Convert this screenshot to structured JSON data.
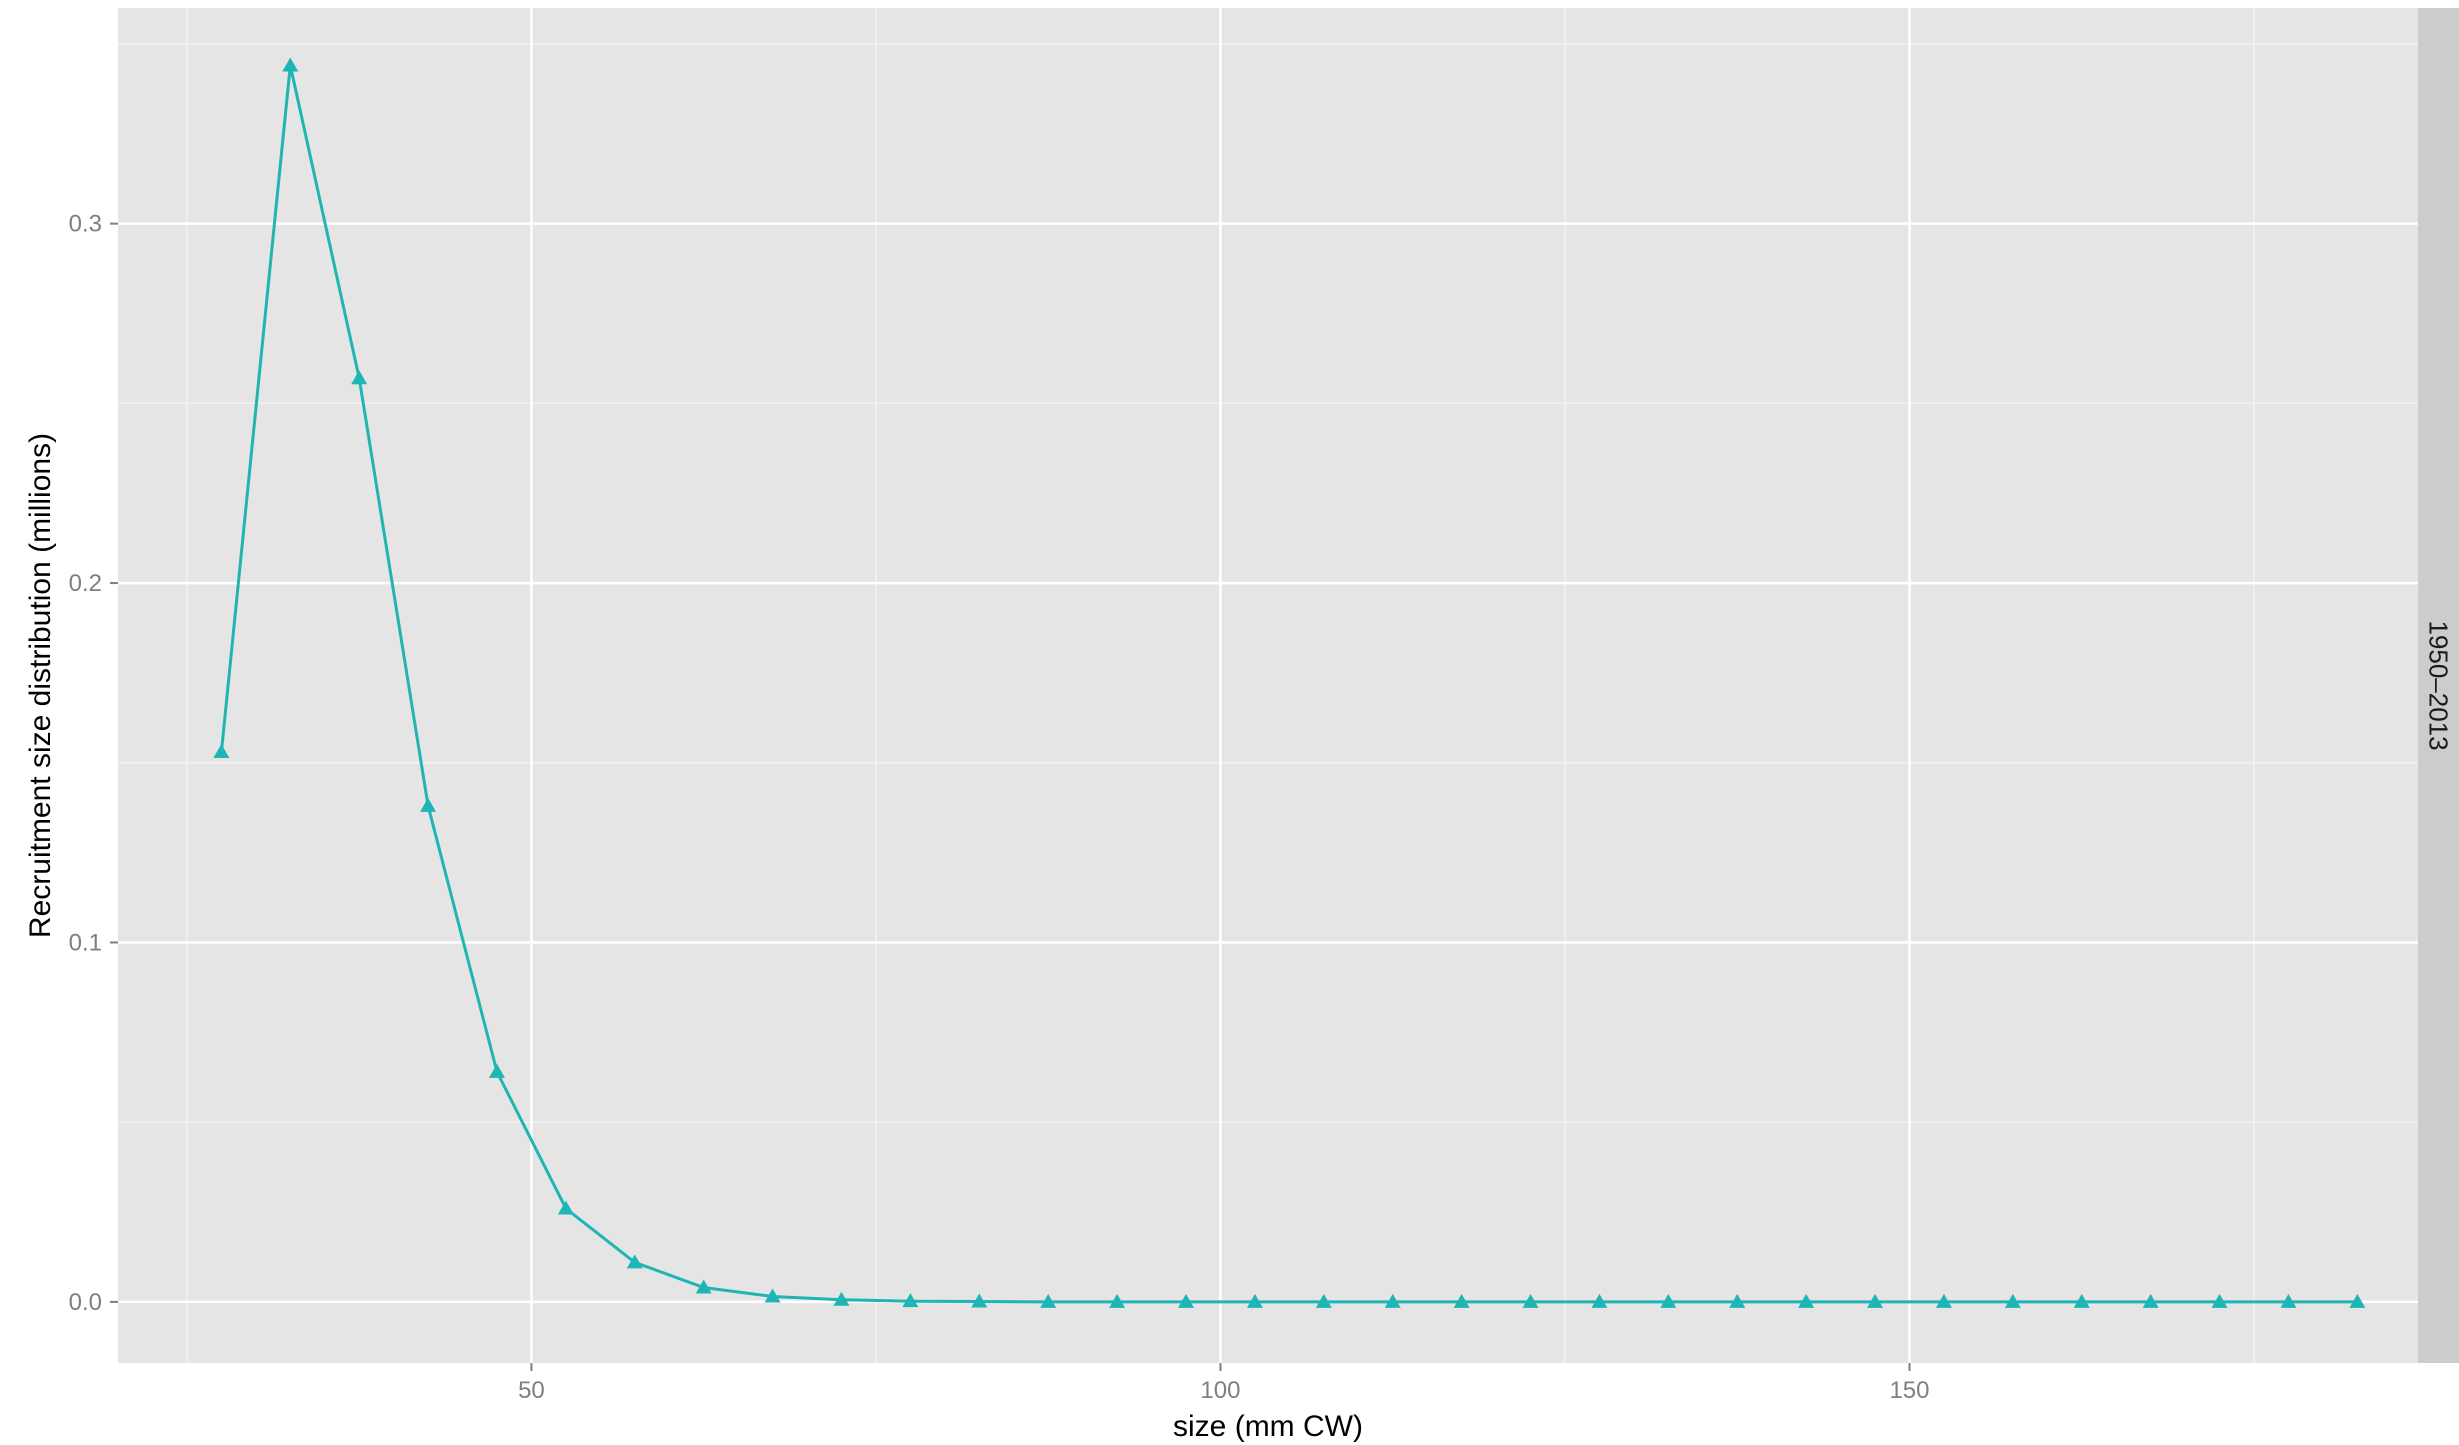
{
  "chart_data": {
    "type": "line",
    "xlabel": "size (mm CW)",
    "ylabel": "Recruitment size distribution (millions)",
    "facet_label": "1950–2013",
    "xlim": [
      20,
      182.5
    ],
    "ylim": [
      -0.017,
      0.36
    ],
    "x_ticks": [
      50,
      100,
      150
    ],
    "y_ticks": [
      0.0,
      0.1,
      0.2,
      0.3
    ],
    "x_tick_labels": [
      "50",
      "100",
      "150"
    ],
    "y_tick_labels": [
      "0.0",
      "0.1",
      "0.2",
      "0.3"
    ],
    "grid": true,
    "marker": "triangle",
    "colors": {
      "series": "#1fb5b5",
      "panel_bg": "#e5e5e5",
      "strip_bg": "#cccccc",
      "grid_major": "#ffffff",
      "grid_minor": "#f2f2f2"
    },
    "series": [
      {
        "x": [
          27.5,
          32.5,
          37.5,
          42.5,
          47.5,
          52.5,
          57.5,
          62.5,
          67.5,
          72.5,
          77.5,
          82.5,
          87.5,
          92.5,
          97.5,
          102.5,
          107.5,
          112.5,
          117.5,
          122.5,
          127.5,
          132.5,
          137.5,
          142.5,
          147.5,
          152.5,
          157.5,
          162.5,
          167.5,
          172.5,
          177.5,
          182.5
        ],
        "values": [
          0.153,
          0.344,
          0.257,
          0.138,
          0.064,
          0.026,
          0.011,
          0.004,
          0.0015,
          0.0006,
          0.0002,
          0.0001,
          0,
          0,
          0,
          0,
          0,
          0,
          0,
          0,
          0,
          0,
          0,
          0,
          0,
          0,
          0,
          0,
          0,
          0,
          0,
          0
        ]
      }
    ]
  }
}
